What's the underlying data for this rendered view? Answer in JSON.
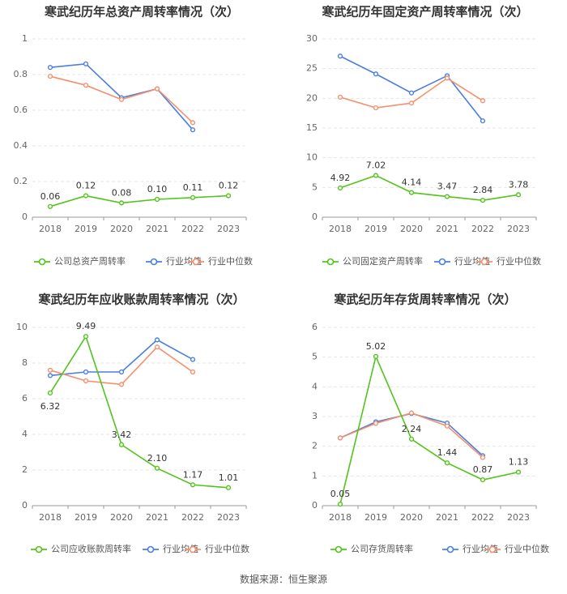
{
  "colors": {
    "company": "#52c41a",
    "industry_avg": "#4a7ee0",
    "industry_median": "#f4906c",
    "grid": "#e6e6e6",
    "axis": "#999999"
  },
  "legend": [
    "公司总资产周转率",
    "行业均值",
    "行业中位数"
  ],
  "source": "数据来源：恒生聚源",
  "chart_data": [
    {
      "type": "line",
      "title": "寒武纪历年总资产周转率情况（次）",
      "categories": [
        "2018",
        "2019",
        "2020",
        "2021",
        "2022",
        "2023"
      ],
      "ylim": [
        0,
        1
      ],
      "yticks": [
        "0",
        "0.2",
        "0.4",
        "0.6",
        "0.8",
        "1"
      ],
      "grid": true,
      "legend_position": "bottom",
      "series": [
        {
          "name": "公司总资产周转率",
          "values": [
            0.06,
            0.12,
            0.08,
            0.1,
            0.11,
            0.12
          ],
          "labels": [
            "0.06",
            "0.12",
            "0.08",
            "0.10",
            "0.11",
            "0.12"
          ]
        },
        {
          "name": "行业均值",
          "values": [
            0.84,
            0.86,
            0.67,
            0.72,
            0.49,
            null
          ]
        },
        {
          "name": "行业中位数",
          "values": [
            0.79,
            0.74,
            0.66,
            0.72,
            0.53,
            null
          ]
        }
      ]
    },
    {
      "type": "line",
      "title": "寒武纪历年固定资产周转率情况（次）",
      "categories": [
        "2018",
        "2019",
        "2020",
        "2021",
        "2022",
        "2023"
      ],
      "ylim": [
        0,
        30
      ],
      "yticks": [
        "0",
        "5",
        "10",
        "15",
        "20",
        "25",
        "30"
      ],
      "grid": true,
      "legend_position": "bottom",
      "series": [
        {
          "name": "公司固定资产周转率",
          "values": [
            4.92,
            7.02,
            4.14,
            3.47,
            2.84,
            3.78
          ],
          "labels": [
            "4.92",
            "7.02",
            "4.14",
            "3.47",
            "2.84",
            "3.78"
          ]
        },
        {
          "name": "行业均值",
          "values": [
            27.1,
            24.1,
            20.9,
            23.8,
            16.2,
            null
          ]
        },
        {
          "name": "行业中位数",
          "values": [
            20.2,
            18.4,
            19.2,
            23.4,
            19.6,
            null
          ]
        }
      ]
    },
    {
      "type": "line",
      "title": "寒武纪历年应收账款周转率情况（次）",
      "categories": [
        "2018",
        "2019",
        "2020",
        "2021",
        "2022",
        "2023"
      ],
      "ylim": [
        0,
        10
      ],
      "yticks": [
        "0",
        "2",
        "4",
        "6",
        "8",
        "10"
      ],
      "grid": true,
      "legend_position": "bottom",
      "series": [
        {
          "name": "公司应收账款周转率",
          "values": [
            6.32,
            9.49,
            3.42,
            2.1,
            1.17,
            1.01
          ],
          "labels": [
            "6.32",
            "9.49",
            "3.42",
            "2.10",
            "1.17",
            "1.01"
          ]
        },
        {
          "name": "行业均值",
          "values": [
            7.3,
            7.5,
            7.5,
            9.3,
            8.2,
            null
          ]
        },
        {
          "name": "行业中位数",
          "values": [
            7.6,
            7.0,
            6.8,
            8.9,
            7.5,
            null
          ]
        }
      ]
    },
    {
      "type": "line",
      "title": "寒武纪历年存货周转率情况（次）",
      "categories": [
        "2018",
        "2019",
        "2020",
        "2021",
        "2022",
        "2023"
      ],
      "ylim": [
        0,
        6
      ],
      "yticks": [
        "0",
        "1",
        "2",
        "3",
        "4",
        "5",
        "6"
      ],
      "grid": true,
      "legend_position": "bottom",
      "series": [
        {
          "name": "公司存货周转率",
          "values": [
            0.05,
            5.02,
            2.24,
            1.44,
            0.87,
            1.13
          ],
          "labels": [
            "0.05",
            "5.02",
            "2.24",
            "1.44",
            "0.87",
            "1.13"
          ]
        },
        {
          "name": "行业均值",
          "values": [
            2.28,
            2.82,
            3.1,
            2.78,
            1.68,
            null
          ]
        },
        {
          "name": "行业中位数",
          "values": [
            2.28,
            2.77,
            3.12,
            2.68,
            1.62,
            null
          ]
        }
      ]
    }
  ]
}
